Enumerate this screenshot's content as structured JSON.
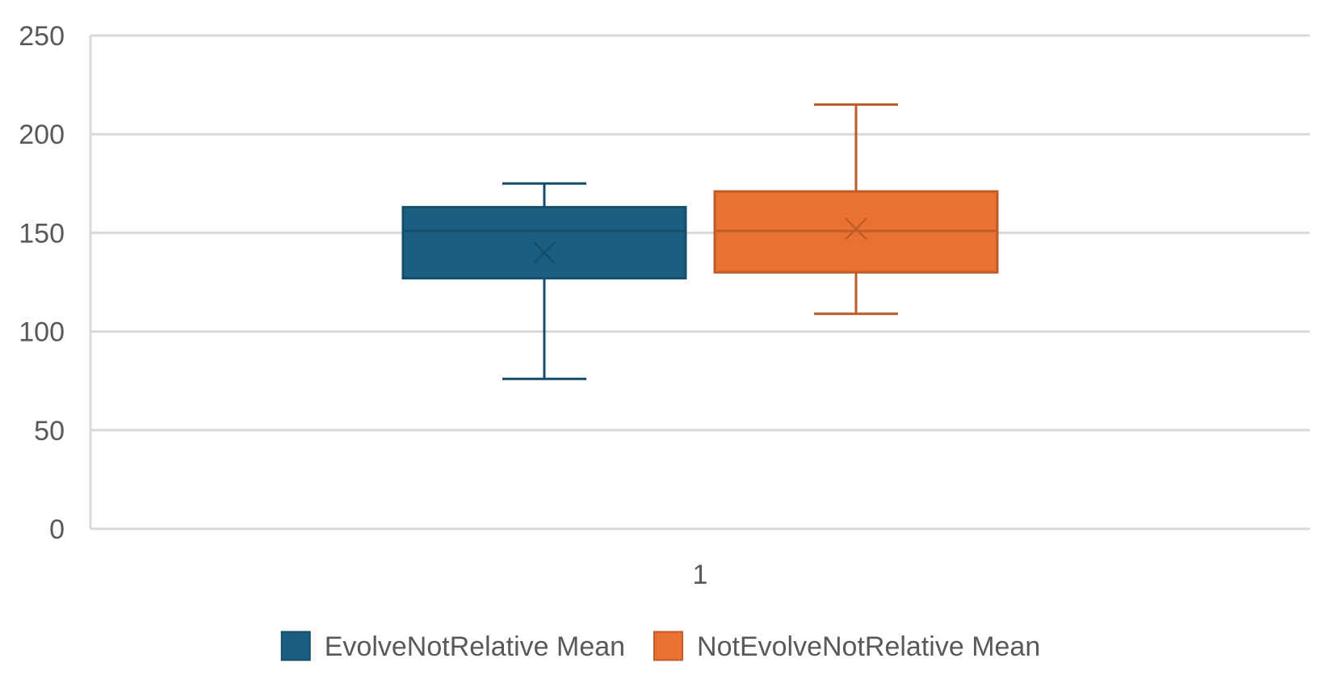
{
  "chart_data": {
    "type": "box",
    "title": "",
    "xlabel": "",
    "ylabel": "",
    "ylim": [
      0,
      250
    ],
    "yticks": [
      0,
      50,
      100,
      150,
      200,
      250
    ],
    "categories": [
      "1"
    ],
    "grid": true,
    "legend_position": "bottom",
    "series": [
      {
        "name": "EvolveNotRelative Mean",
        "color": "#1a5e82",
        "values": [
          {
            "category": "1",
            "min": 76,
            "q1": 127,
            "median": 151,
            "q3": 163,
            "max": 175,
            "mean": 140
          }
        ]
      },
      {
        "name": "NotEvolveNotRelative Mean",
        "color": "#e97132",
        "values": [
          {
            "category": "1",
            "min": 109,
            "q1": 130,
            "median": 151,
            "q3": 171,
            "max": 215,
            "mean": 152
          }
        ]
      }
    ]
  }
}
